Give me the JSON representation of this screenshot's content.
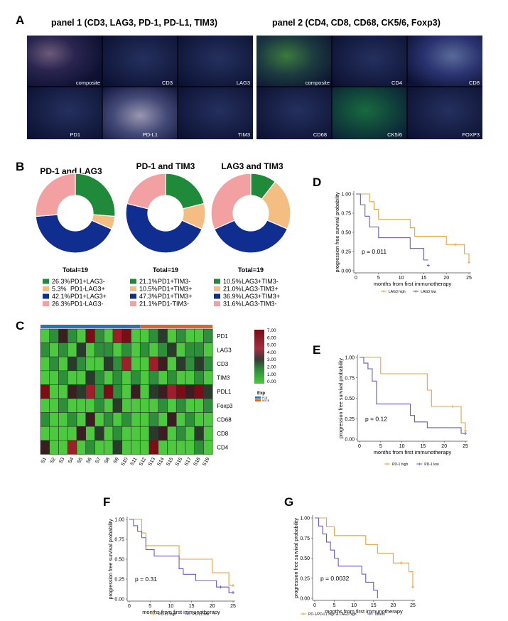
{
  "figure": {
    "panel_letters": [
      "A",
      "B",
      "C",
      "D",
      "E",
      "F",
      "G"
    ],
    "panelA": {
      "title1": "panel 1 (CD3, LAG3, PD-1, PD-L1, TIM3)",
      "title2": "panel 2 (CD4, CD8, CD68, CK5/6, Foxp3)",
      "tiles1": [
        "composite",
        "CD3",
        "LAG3",
        "PD1",
        "PD-L1",
        "TIM3"
      ],
      "tiles2": [
        "composite",
        "CD4",
        "CD8",
        "CD68",
        "CK5/6",
        "FOXP3"
      ]
    },
    "panelB": {
      "donuts": [
        {
          "title": "PD-1 and LAG3",
          "total": "Total=19",
          "legend": [
            {
              "pct": "26.3%",
              "label": "PD1+LAG3-"
            },
            {
              "pct": "5.3%",
              "label": "PD1-LAG3+"
            },
            {
              "pct": "42.1%",
              "label": "PD1+LAG3+"
            },
            {
              "pct": "26.3%",
              "label": "PD1-LAG3-"
            }
          ],
          "values": [
            26.3,
            5.3,
            42.1,
            26.3
          ]
        },
        {
          "title": "PD-1 and TIM3",
          "total": "Total=19",
          "legend": [
            {
              "pct": "21.1%",
              "label": "PD1+TIM3-"
            },
            {
              "pct": "10.5%",
              "label": "PD1+TIM3+"
            },
            {
              "pct": "47.3%",
              "label": "PD1+TIM3+"
            },
            {
              "pct": "21.1%",
              "label": "PD1-TIM3-"
            }
          ],
          "values": [
            21.1,
            10.5,
            47.3,
            21.1
          ]
        },
        {
          "title": "LAG3 and TIM3",
          "total": "Total=19",
          "legend": [
            {
              "pct": "10.5%",
              "label": "LAG3+TIM3-"
            },
            {
              "pct": "21.0%",
              "label": "LAG3-TIM3+"
            },
            {
              "pct": "36.9%",
              "label": "LAG3+TIM3+"
            },
            {
              "pct": "31.6%",
              "label": "LAG3-TIM3-"
            }
          ],
          "values": [
            10.5,
            21.0,
            36.9,
            31.6
          ]
        }
      ]
    },
    "panelC": {
      "rows": [
        "PD1",
        "LAG3",
        "CD3",
        "TIM3",
        "PDL1",
        "Foxp3",
        "CD68",
        "CD8",
        "CD4"
      ],
      "cols": [
        "S1",
        "S2",
        "S3",
        "S4",
        "S5",
        "S6",
        "S7",
        "S8",
        "S9",
        "S10",
        "S11",
        "S12",
        "S13",
        "S14",
        "S15",
        "S16",
        "S17",
        "S18",
        "S19"
      ],
      "scale": [
        "7.00",
        "6.00",
        "5.00",
        "4.00",
        "3.00",
        "2.00",
        "1.00",
        "0.00"
      ],
      "exp_title": "Exp",
      "exp_items": [
        "PCB",
        "NDCB"
      ],
      "values": [
        [
          1,
          2,
          4,
          2,
          1,
          5,
          2,
          1,
          6,
          5,
          1,
          1,
          2,
          3,
          1,
          2,
          1,
          1,
          2
        ],
        [
          2,
          1,
          2,
          1,
          3,
          1,
          2,
          2,
          1,
          2,
          1,
          2,
          1,
          2,
          3,
          1,
          2,
          2,
          1
        ],
        [
          1,
          2,
          1,
          3,
          2,
          1,
          1,
          3,
          2,
          6,
          1,
          1,
          6,
          4,
          1,
          3,
          2,
          3,
          2
        ],
        [
          1,
          1,
          2,
          1,
          1,
          3,
          2,
          1,
          2,
          1,
          2,
          1,
          2,
          1,
          2,
          1,
          1,
          2,
          1
        ],
        [
          5,
          1,
          1,
          4,
          3,
          6,
          2,
          5,
          2,
          1,
          4,
          1,
          3,
          4,
          6,
          5,
          4,
          5,
          3
        ],
        [
          1,
          1,
          2,
          1,
          1,
          1,
          2,
          1,
          3,
          1,
          1,
          1,
          1,
          2,
          1,
          2,
          1,
          1,
          2
        ],
        [
          2,
          1,
          1,
          2,
          1,
          4,
          1,
          2,
          1,
          2,
          1,
          1,
          2,
          1,
          4,
          1,
          2,
          1,
          1
        ],
        [
          1,
          1,
          1,
          1,
          4,
          1,
          3,
          1,
          2,
          1,
          1,
          1,
          3,
          4,
          1,
          2,
          1,
          3,
          1
        ],
        [
          4,
          1,
          1,
          6,
          1,
          2,
          1,
          1,
          3,
          1,
          1,
          1,
          5,
          1,
          1,
          1,
          1,
          2,
          1
        ]
      ]
    }
  },
  "chart_data": [
    {
      "type": "line",
      "panel": "D",
      "ylabel": "progression free survival probability",
      "xlabel": "months from first immunotherapy",
      "xticks": [
        "0",
        "5",
        "10",
        "15",
        "20",
        "25"
      ],
      "yticks": [
        "0.00",
        "0.25",
        "0.50",
        "0.75",
        "1.00"
      ],
      "xlim": [
        0,
        25
      ],
      "ylim": [
        0,
        1
      ],
      "pvalue": "p = 0.011",
      "series": [
        {
          "name": "LAG3 high",
          "color": "#e8a33d",
          "steps": [
            [
              0,
              1
            ],
            [
              3,
              0.9
            ],
            [
              4,
              0.8
            ],
            [
              5,
              0.67
            ],
            [
              12,
              0.56
            ],
            [
              13,
              0.45
            ],
            [
              20,
              0.34
            ],
            [
              24,
              0.22
            ],
            [
              25,
              0.11
            ]
          ],
          "end": 25,
          "censor": [
            [
              22,
              0.34
            ],
            [
              25,
              0.11
            ]
          ]
        },
        {
          "name": "LAG3 low",
          "color": "#6a5acd",
          "steps": [
            [
              0,
              1
            ],
            [
              1,
              0.86
            ],
            [
              2,
              0.71
            ],
            [
              3,
              0.57
            ],
            [
              5,
              0.43
            ],
            [
              12,
              0.29
            ],
            [
              15,
              0.14
            ]
          ],
          "end": 16,
          "censor": [
            [
              16,
              0.07
            ]
          ]
        }
      ]
    },
    {
      "type": "line",
      "panel": "E",
      "ylabel": "progression free survival probability",
      "xlabel": "months from first immunotherapy",
      "xticks": [
        "0",
        "5",
        "10",
        "15",
        "20",
        "25"
      ],
      "yticks": [
        "0.00",
        "0.25",
        "0.50",
        "0.75",
        "1.00"
      ],
      "xlim": [
        0,
        25
      ],
      "ylim": [
        0,
        1
      ],
      "pvalue": "p = 0.12",
      "series": [
        {
          "name": "PD-1 high",
          "color": "#e8a33d",
          "steps": [
            [
              0,
              1
            ],
            [
              5,
              0.8
            ],
            [
              16,
              0.6
            ],
            [
              17,
              0.4
            ],
            [
              24,
              0.2
            ],
            [
              25,
              0.1
            ]
          ],
          "end": 25,
          "censor": [
            [
              22,
              0.4
            ],
            [
              25,
              0.1
            ]
          ]
        },
        {
          "name": "PD-1 low",
          "color": "#6a5acd",
          "steps": [
            [
              0,
              1
            ],
            [
              1,
              0.93
            ],
            [
              2,
              0.86
            ],
            [
              3,
              0.71
            ],
            [
              4,
              0.43
            ],
            [
              12,
              0.29
            ],
            [
              13,
              0.21
            ],
            [
              16,
              0.14
            ],
            [
              24,
              0.07
            ]
          ],
          "end": 25,
          "censor": [
            [
              25,
              0.07
            ]
          ]
        }
      ]
    },
    {
      "type": "line",
      "panel": "F",
      "ylabel": "progression free survival probability",
      "xlabel": "months from first immunotherapy",
      "xticks": [
        "0",
        "5",
        "10",
        "15",
        "20",
        "25"
      ],
      "yticks": [
        "0.00",
        "0.25",
        "0.50",
        "0.75",
        "1.00"
      ],
      "xlim": [
        0,
        25
      ],
      "ylim": [
        0,
        1
      ],
      "pvalue": "p = 0.31",
      "series": [
        {
          "name": "PD-L1 high",
          "color": "#e8a33d",
          "steps": [
            [
              0,
              1
            ],
            [
              3,
              0.83
            ],
            [
              4,
              0.67
            ],
            [
              12,
              0.5
            ],
            [
              20,
              0.33
            ],
            [
              24,
              0.17
            ]
          ],
          "end": 25,
          "censor": [
            [
              25,
              0.17
            ]
          ]
        },
        {
          "name": "PD-L1 low",
          "color": "#6a5acd",
          "steps": [
            [
              0,
              1
            ],
            [
              1,
              0.92
            ],
            [
              2,
              0.85
            ],
            [
              3,
              0.77
            ],
            [
              4,
              0.62
            ],
            [
              6,
              0.54
            ],
            [
              12,
              0.38
            ],
            [
              13,
              0.31
            ],
            [
              16,
              0.23
            ],
            [
              21,
              0.15
            ],
            [
              24,
              0.08
            ]
          ],
          "end": 25,
          "censor": [
            [
              22,
              0.15
            ],
            [
              25,
              0.08
            ]
          ]
        }
      ]
    },
    {
      "type": "line",
      "panel": "G",
      "ylabel": "progression free survival probability",
      "xlabel": "months from first immunotherapy",
      "xticks": [
        "0",
        "5",
        "10",
        "15",
        "20",
        "25"
      ],
      "yticks": [
        "0.00",
        "0.25",
        "0.50",
        "0.75",
        "1.00"
      ],
      "xlim": [
        0,
        25
      ],
      "ylim": [
        0,
        1
      ],
      "pvalue": "p = 0.0032",
      "series": [
        {
          "name": "PD-1/PD-L1 high & LAG3 high",
          "color": "#e8a33d",
          "steps": [
            [
              0,
              1
            ],
            [
              3,
              0.89
            ],
            [
              5,
              0.78
            ],
            [
              13,
              0.67
            ],
            [
              16,
              0.56
            ],
            [
              20,
              0.44
            ],
            [
              24,
              0.33
            ],
            [
              25,
              0.14
            ]
          ],
          "end": 25,
          "censor": [
            [
              22,
              0.44
            ],
            [
              25,
              0.14
            ]
          ]
        },
        {
          "name": "others",
          "color": "#6a5acd",
          "steps": [
            [
              0,
              1
            ],
            [
              1,
              0.9
            ],
            [
              2,
              0.8
            ],
            [
              3,
              0.7
            ],
            [
              4,
              0.6
            ],
            [
              5,
              0.5
            ],
            [
              6,
              0.4
            ],
            [
              12,
              0.3
            ],
            [
              13,
              0.2
            ],
            [
              15,
              0.1
            ],
            [
              16,
              0
            ]
          ],
          "end": 16,
          "censor": []
        }
      ]
    }
  ]
}
